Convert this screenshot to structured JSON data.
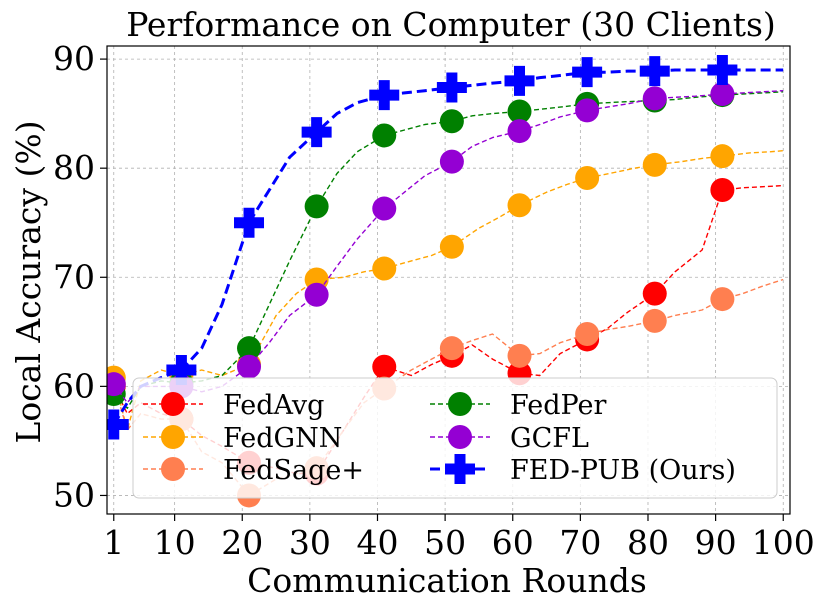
{
  "chart_data": {
    "type": "line",
    "title": "Performance on Computer (30 Clients)",
    "xlabel": "Communication Rounds",
    "ylabel": "Local Accuracy (%)",
    "xlim": [
      0,
      101
    ],
    "ylim": [
      48.3,
      91.2
    ],
    "xticks": [
      1,
      10,
      20,
      30,
      40,
      50,
      60,
      70,
      80,
      90,
      100
    ],
    "yticks": [
      50,
      60,
      70,
      80,
      90
    ],
    "grid": true,
    "legend_position": "lower-center",
    "series": [
      {
        "name": "FedAvg",
        "color": "#ff0000",
        "marker": "circle",
        "line": "dashed",
        "x": [
          1,
          3,
          5,
          8,
          11,
          14,
          17,
          21,
          25,
          28,
          31,
          35,
          38,
          41,
          45,
          48,
          51,
          54,
          57,
          61,
          64,
          67,
          71,
          74,
          77,
          81,
          84,
          88,
          91,
          94,
          97,
          100
        ],
        "y": [
          60.0,
          57.5,
          58.5,
          57.5,
          57.0,
          55.5,
          54.5,
          53.0,
          52.5,
          52.0,
          52.0,
          56.0,
          59.0,
          61.8,
          61.0,
          62.0,
          62.8,
          63.8,
          62.5,
          61.2,
          61.0,
          63.0,
          64.3,
          65.3,
          66.8,
          68.5,
          70.5,
          72.5,
          78.0,
          78.2,
          78.3,
          78.4
        ],
        "markers_x": [
          1,
          11,
          21,
          31,
          41,
          51,
          61,
          71,
          81,
          91
        ],
        "markers_y": [
          60.0,
          57.0,
          53.0,
          52.0,
          61.8,
          62.8,
          61.2,
          64.3,
          68.5,
          78.0
        ]
      },
      {
        "name": "FedGNN",
        "color": "#ffa500",
        "marker": "circle",
        "line": "dashed",
        "x": [
          1,
          3,
          5,
          8,
          11,
          14,
          17,
          21,
          25,
          28,
          31,
          35,
          38,
          41,
          45,
          48,
          51,
          55,
          58,
          61,
          65,
          68,
          71,
          75,
          78,
          81,
          85,
          88,
          91,
          95,
          98,
          100
        ],
        "y": [
          60.8,
          56.0,
          60.5,
          61.5,
          61.0,
          61.5,
          61.0,
          62.0,
          66.5,
          68.5,
          69.8,
          70.0,
          70.5,
          70.8,
          71.5,
          72.0,
          72.8,
          74.5,
          75.5,
          76.6,
          77.8,
          78.5,
          79.1,
          79.6,
          80.0,
          80.3,
          80.6,
          80.9,
          81.1,
          81.4,
          81.5,
          81.6
        ],
        "markers_x": [
          1,
          11,
          21,
          31,
          41,
          51,
          61,
          71,
          81,
          91
        ],
        "markers_y": [
          60.8,
          61.0,
          62.0,
          69.8,
          70.8,
          72.8,
          76.6,
          79.1,
          80.3,
          81.1
        ]
      },
      {
        "name": "FedSage+",
        "color": "#ff7f50",
        "marker": "circle",
        "line": "dashed",
        "x": [
          1,
          3,
          5,
          8,
          11,
          14,
          17,
          21,
          25,
          28,
          31,
          35,
          38,
          41,
          45,
          48,
          51,
          54,
          57,
          61,
          64,
          67,
          71,
          74,
          77,
          81,
          84,
          88,
          91,
          94,
          97,
          100
        ],
        "y": [
          60.2,
          56.0,
          57.5,
          57.0,
          57.0,
          54.0,
          53.0,
          50.0,
          51.5,
          52.0,
          52.5,
          56.0,
          58.5,
          59.8,
          61.5,
          62.5,
          63.5,
          64.2,
          64.8,
          62.8,
          63.0,
          64.0,
          64.8,
          65.2,
          65.5,
          66.0,
          66.5,
          67.0,
          68.0,
          68.5,
          69.2,
          69.8
        ],
        "markers_x": [
          1,
          11,
          21,
          31,
          41,
          51,
          61,
          71,
          81,
          91
        ],
        "markers_y": [
          60.2,
          57.0,
          50.0,
          52.5,
          59.8,
          63.5,
          62.8,
          64.8,
          66.0,
          68.0
        ]
      },
      {
        "name": "FedPer",
        "color": "#008000",
        "marker": "circle",
        "line": "dashed",
        "x": [
          1,
          3,
          5,
          8,
          11,
          14,
          17,
          21,
          24,
          27,
          31,
          34,
          37,
          41,
          44,
          47,
          51,
          54,
          57,
          61,
          64,
          67,
          71,
          74,
          77,
          81,
          84,
          87,
          91,
          94,
          97,
          100
        ],
        "y": [
          59.3,
          58.0,
          60.0,
          60.5,
          60.3,
          60.5,
          61.0,
          63.5,
          67.5,
          71.5,
          76.5,
          79.5,
          81.5,
          83.0,
          83.5,
          84.0,
          84.3,
          84.8,
          85.0,
          85.2,
          85.4,
          85.6,
          85.9,
          86.0,
          86.1,
          86.2,
          86.3,
          86.5,
          86.7,
          86.8,
          86.9,
          87.0
        ],
        "markers_x": [
          1,
          11,
          21,
          31,
          41,
          51,
          61,
          71,
          81,
          91
        ],
        "markers_y": [
          59.3,
          60.3,
          63.5,
          76.5,
          83.0,
          84.3,
          85.2,
          85.9,
          86.2,
          86.7
        ]
      },
      {
        "name": "GCFL",
        "color": "#9400d3",
        "marker": "circle",
        "line": "dashed",
        "x": [
          1,
          3,
          5,
          8,
          11,
          14,
          17,
          21,
          24,
          27,
          31,
          34,
          37,
          41,
          44,
          47,
          51,
          54,
          57,
          61,
          64,
          67,
          71,
          74,
          77,
          81,
          84,
          87,
          91,
          94,
          97,
          100
        ],
        "y": [
          60.2,
          58.5,
          60.0,
          60.0,
          60.0,
          59.5,
          60.0,
          61.8,
          64.0,
          66.5,
          68.4,
          71.0,
          73.5,
          76.3,
          77.8,
          79.3,
          80.6,
          82.0,
          82.8,
          83.4,
          84.0,
          84.7,
          85.3,
          85.6,
          85.9,
          86.4,
          86.5,
          86.6,
          86.8,
          86.9,
          87.0,
          87.1
        ],
        "markers_x": [
          1,
          11,
          21,
          31,
          41,
          51,
          61,
          71,
          81,
          91
        ],
        "markers_y": [
          60.2,
          60.0,
          61.8,
          68.4,
          76.3,
          80.6,
          83.4,
          85.3,
          86.4,
          86.8
        ]
      },
      {
        "name": "FED-PUB (Ours)",
        "color": "#0000ff",
        "marker": "plus",
        "line": "dashed",
        "x": [
          1,
          3,
          5,
          8,
          11,
          14,
          17,
          21,
          24,
          27,
          31,
          34,
          37,
          41,
          44,
          47,
          51,
          54,
          57,
          61,
          64,
          67,
          71,
          74,
          77,
          81,
          84,
          87,
          91,
          94,
          97,
          100
        ],
        "y": [
          56.5,
          58.5,
          60.0,
          60.8,
          61.5,
          63.5,
          67.5,
          75.0,
          78.0,
          81.0,
          83.3,
          85.0,
          86.0,
          86.7,
          86.9,
          87.1,
          87.4,
          87.6,
          87.8,
          88.0,
          88.3,
          88.5,
          88.8,
          88.8,
          88.9,
          88.9,
          89.0,
          89.0,
          89.0,
          89.0,
          89.0,
          89.0
        ],
        "markers_x": [
          1,
          11,
          21,
          31,
          41,
          51,
          61,
          71,
          81,
          91
        ],
        "markers_y": [
          56.5,
          61.5,
          75.0,
          83.3,
          86.7,
          87.4,
          88.0,
          88.8,
          88.9,
          89.0
        ]
      }
    ],
    "legend_columns": [
      [
        "FedAvg",
        "FedGNN",
        "FedSage+"
      ],
      [
        "FedPer",
        "GCFL",
        "FED-PUB (Ours)"
      ]
    ]
  }
}
